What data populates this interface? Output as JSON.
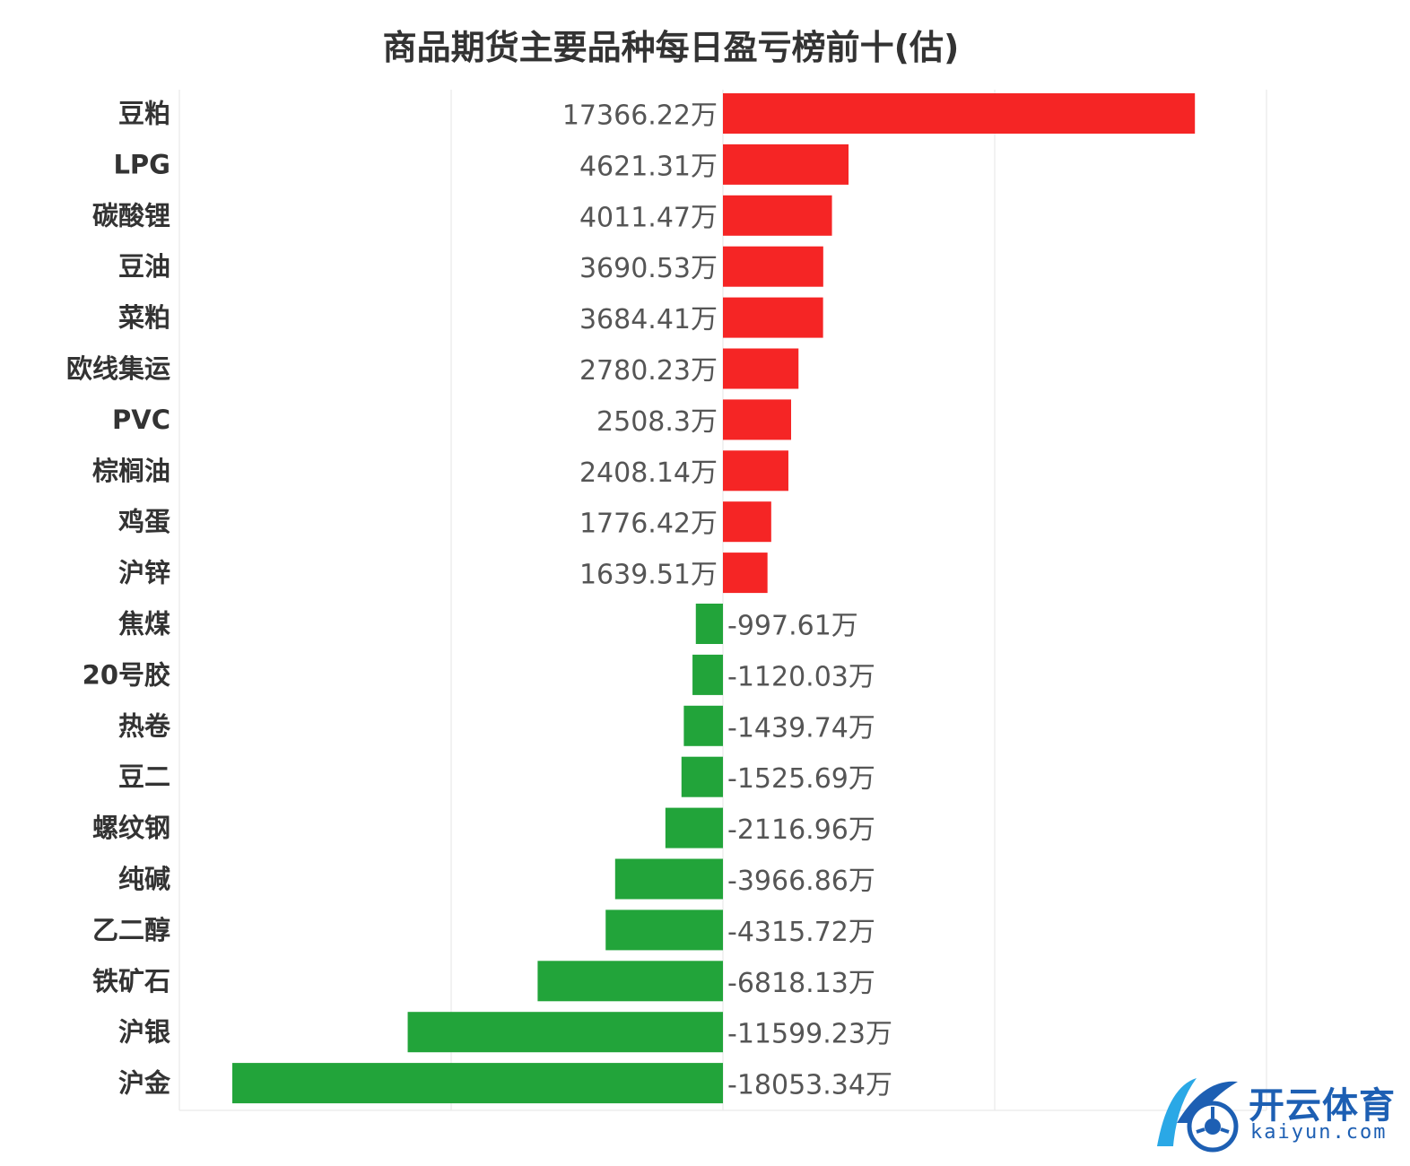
{
  "chart_data": {
    "type": "bar",
    "orientation": "horizontal",
    "title": "商品期货主要品种每日盈亏榜前十(估)",
    "categories": [
      "豆粕",
      "LPG",
      "碳酸锂",
      "豆油",
      "菜粕",
      "欧线集运",
      "PVC",
      "棕榈油",
      "鸡蛋",
      "沪锌",
      "焦煤",
      "20号胶",
      "热卷",
      "豆二",
      "螺纹钢",
      "纯碱",
      "乙二醇",
      "铁矿石",
      "沪银",
      "沪金"
    ],
    "values": [
      17366.22,
      4621.31,
      4011.47,
      3690.53,
      3684.41,
      2780.23,
      2508.3,
      2408.14,
      1776.42,
      1639.51,
      -997.61,
      -1120.03,
      -1439.74,
      -1525.69,
      -2116.96,
      -3966.86,
      -4315.72,
      -6818.13,
      -11599.23,
      -18053.34
    ],
    "value_labels": [
      "17366.22万",
      "4621.31万",
      "4011.47万",
      "3690.53万",
      "3684.41万",
      "2780.23万",
      "2508.3万",
      "2408.14万",
      "1776.42万",
      "1639.51万",
      "-997.61万",
      "-1120.03万",
      "-1439.74万",
      "-1525.69万",
      "-2116.96万",
      "-3966.86万",
      "-4315.72万",
      "-6818.13万",
      "-11599.23万",
      "-18053.34万"
    ],
    "unit": "万",
    "xlim": [
      -20000,
      20000
    ],
    "grid": true,
    "colors": {
      "positive": "#f52525",
      "negative": "#22a43a",
      "grid": "#e6e6e6"
    }
  },
  "watermark": {
    "brand": "开云体育",
    "domain": "kaiyun.com",
    "color": "#1d5fb3"
  }
}
